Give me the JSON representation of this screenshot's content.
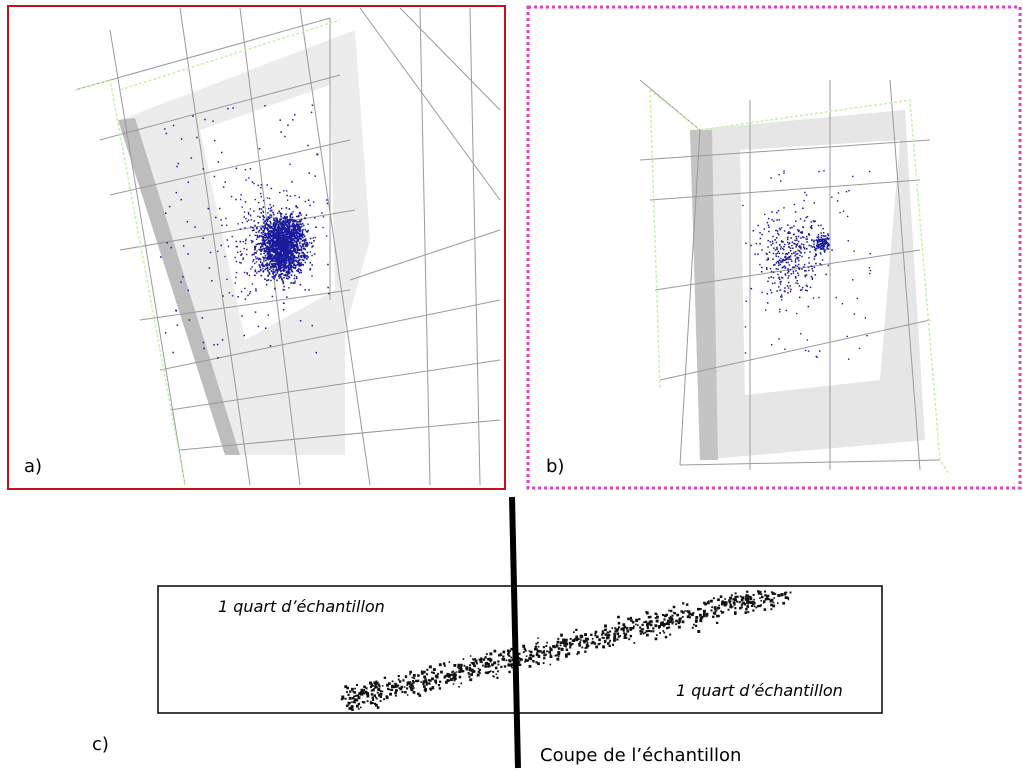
{
  "panels": [
    {
      "label": "a)"
    },
    {
      "label": "b)"
    },
    {
      "label": "c)",
      "annotations": [
        "1 quart d’échantillon",
        "1 quart d’échantillon"
      ],
      "cut_label": "Coupe de l’échantillon"
    }
  ]
}
